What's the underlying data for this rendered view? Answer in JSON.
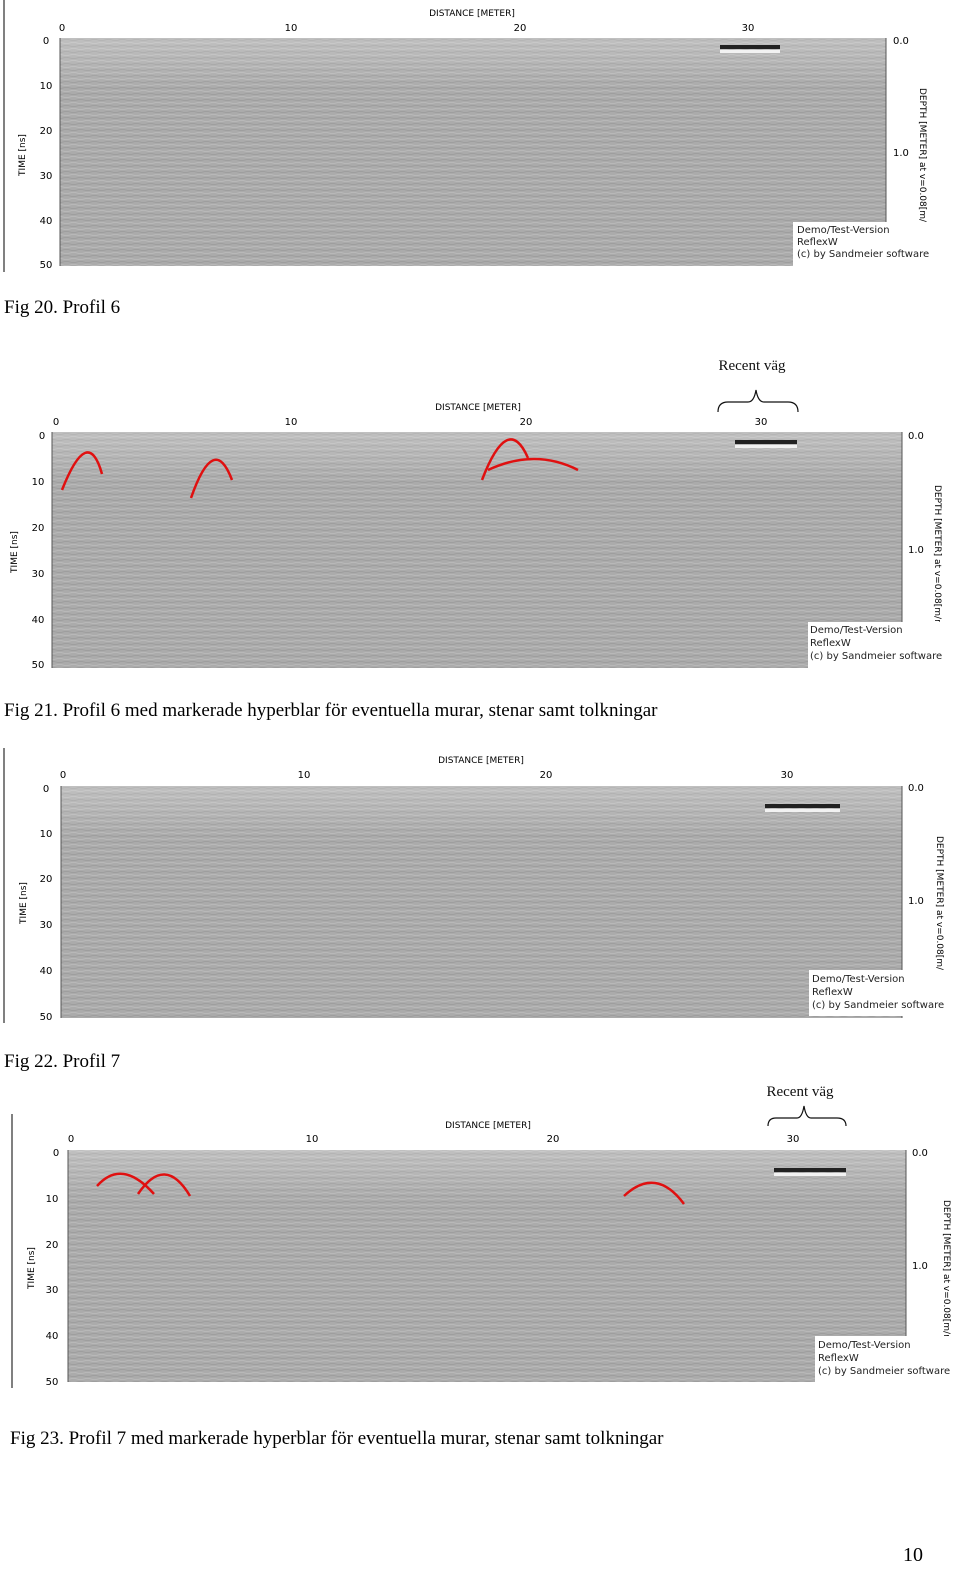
{
  "figures": [
    {
      "id": "fig20",
      "x_axis_label": "DISTANCE [METER]",
      "x_ticks": [
        "0",
        "10",
        "20",
        "30"
      ],
      "y_axis_label": "TIME [ns]",
      "y_ticks": [
        "0",
        "10",
        "20",
        "30",
        "40",
        "50"
      ],
      "depth_axis_label": "DEPTH [METER] at v=0.08[m/ns]",
      "depth_ticks": [
        "0.0",
        "1.0"
      ],
      "watermark": [
        "Demo/Test-Version",
        "ReflexW",
        "(c) by Sandmeier software"
      ],
      "caption": "Fig 20. Profil 6"
    },
    {
      "id": "fig21",
      "annotation": "Recent väg",
      "x_axis_label": "DISTANCE [METER]",
      "x_ticks": [
        "0",
        "10",
        "20",
        "30"
      ],
      "y_axis_label": "TIME [ns]",
      "y_ticks": [
        "0",
        "10",
        "20",
        "30",
        "40",
        "50"
      ],
      "depth_axis_label": "DEPTH [METER] at v=0.08[m/ns]",
      "depth_ticks": [
        "0.0",
        "1.0"
      ],
      "watermark": [
        "Demo/Test-Version",
        "ReflexW",
        "(c) by Sandmeier software"
      ],
      "marker_color": "#e01010",
      "caption": "Fig 21. Profil 6 med markerade hyperblar för eventuella murar, stenar samt tolkningar"
    },
    {
      "id": "fig22",
      "x_axis_label": "DISTANCE [METER]",
      "x_ticks": [
        "0",
        "10",
        "20",
        "30"
      ],
      "y_axis_label": "TIME [ns]",
      "y_ticks": [
        "0",
        "10",
        "20",
        "30",
        "40",
        "50"
      ],
      "depth_axis_label": "DEPTH [METER] at v=0.08[m/ns]",
      "depth_ticks": [
        "0.0",
        "1.0"
      ],
      "watermark": [
        "Demo/Test-Version",
        "ReflexW",
        "(c) by Sandmeier software"
      ],
      "caption": "Fig 22. Profil 7"
    },
    {
      "id": "fig23",
      "annotation": "Recent väg",
      "x_axis_label": "DISTANCE [METER]",
      "x_ticks": [
        "0",
        "10",
        "20",
        "30"
      ],
      "y_axis_label": "TIME [ns]",
      "y_ticks": [
        "0",
        "10",
        "20",
        "30",
        "40",
        "50"
      ],
      "depth_axis_label": "DEPTH [METER] at v=0.08[m/ns]",
      "depth_ticks": [
        "0.0",
        "1.0"
      ],
      "watermark": [
        "Demo/Test-Version",
        "ReflexW",
        "(c) by Sandmeier software"
      ],
      "marker_color": "#e01010",
      "caption": "Fig 23. Profil 7 med markerade hyperblar för eventuella murar, stenar samt tolkningar"
    }
  ],
  "page_number": "10",
  "radargram_colors": {
    "background": "#a9a9a9",
    "banding": "#ffffff",
    "dark": "#333333"
  }
}
